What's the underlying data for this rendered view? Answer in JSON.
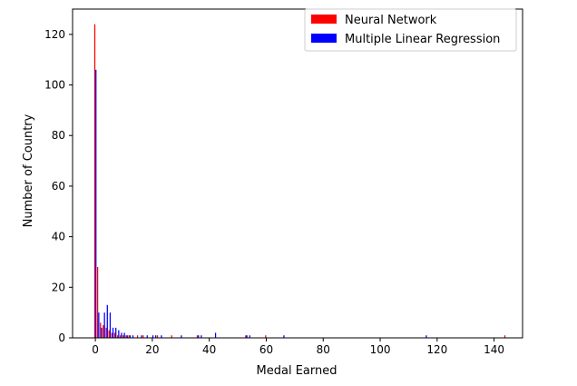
{
  "chart_data": {
    "type": "bar",
    "xlabel": "Medal Earned",
    "ylabel": "Number of Country",
    "xlim": [
      -8,
      150
    ],
    "ylim": [
      0,
      130
    ],
    "xticks": [
      0,
      20,
      40,
      60,
      80,
      100,
      120,
      140
    ],
    "yticks": [
      0,
      20,
      40,
      60,
      80,
      100,
      120
    ],
    "grid": false,
    "legend_position": "top-right",
    "series": [
      {
        "name": "Neural Network",
        "color": "#ff0000",
        "points": [
          {
            "x": 0,
            "y": 124
          },
          {
            "x": 1,
            "y": 28
          },
          {
            "x": 2,
            "y": 6
          },
          {
            "x": 3,
            "y": 5
          },
          {
            "x": 4,
            "y": 4
          },
          {
            "x": 5,
            "y": 3
          },
          {
            "x": 6,
            "y": 2
          },
          {
            "x": 7,
            "y": 2
          },
          {
            "x": 8,
            "y": 1
          },
          {
            "x": 9,
            "y": 1
          },
          {
            "x": 10,
            "y": 1
          },
          {
            "x": 11,
            "y": 1
          },
          {
            "x": 12,
            "y": 1
          },
          {
            "x": 15,
            "y": 1
          },
          {
            "x": 17,
            "y": 1
          },
          {
            "x": 22,
            "y": 1
          },
          {
            "x": 27,
            "y": 1
          },
          {
            "x": 36,
            "y": 1
          },
          {
            "x": 53,
            "y": 1
          },
          {
            "x": 60,
            "y": 1
          },
          {
            "x": 144,
            "y": 1
          }
        ]
      },
      {
        "name": "Multiple Linear Regression",
        "color": "#0000ff",
        "points": [
          {
            "x": 0,
            "y": 106
          },
          {
            "x": 1,
            "y": 10
          },
          {
            "x": 2,
            "y": 4
          },
          {
            "x": 3,
            "y": 10
          },
          {
            "x": 4,
            "y": 13
          },
          {
            "x": 5,
            "y": 10
          },
          {
            "x": 6,
            "y": 4
          },
          {
            "x": 7,
            "y": 4
          },
          {
            "x": 8,
            "y": 3
          },
          {
            "x": 9,
            "y": 2
          },
          {
            "x": 10,
            "y": 2
          },
          {
            "x": 11,
            "y": 1
          },
          {
            "x": 12,
            "y": 1
          },
          {
            "x": 13,
            "y": 1
          },
          {
            "x": 16,
            "y": 1
          },
          {
            "x": 18,
            "y": 1
          },
          {
            "x": 20,
            "y": 1
          },
          {
            "x": 21,
            "y": 1
          },
          {
            "x": 23,
            "y": 1
          },
          {
            "x": 30,
            "y": 1
          },
          {
            "x": 36,
            "y": 1
          },
          {
            "x": 37,
            "y": 1
          },
          {
            "x": 42,
            "y": 2
          },
          {
            "x": 53,
            "y": 1
          },
          {
            "x": 54,
            "y": 1
          },
          {
            "x": 66,
            "y": 1
          },
          {
            "x": 116,
            "y": 1
          }
        ]
      }
    ]
  }
}
